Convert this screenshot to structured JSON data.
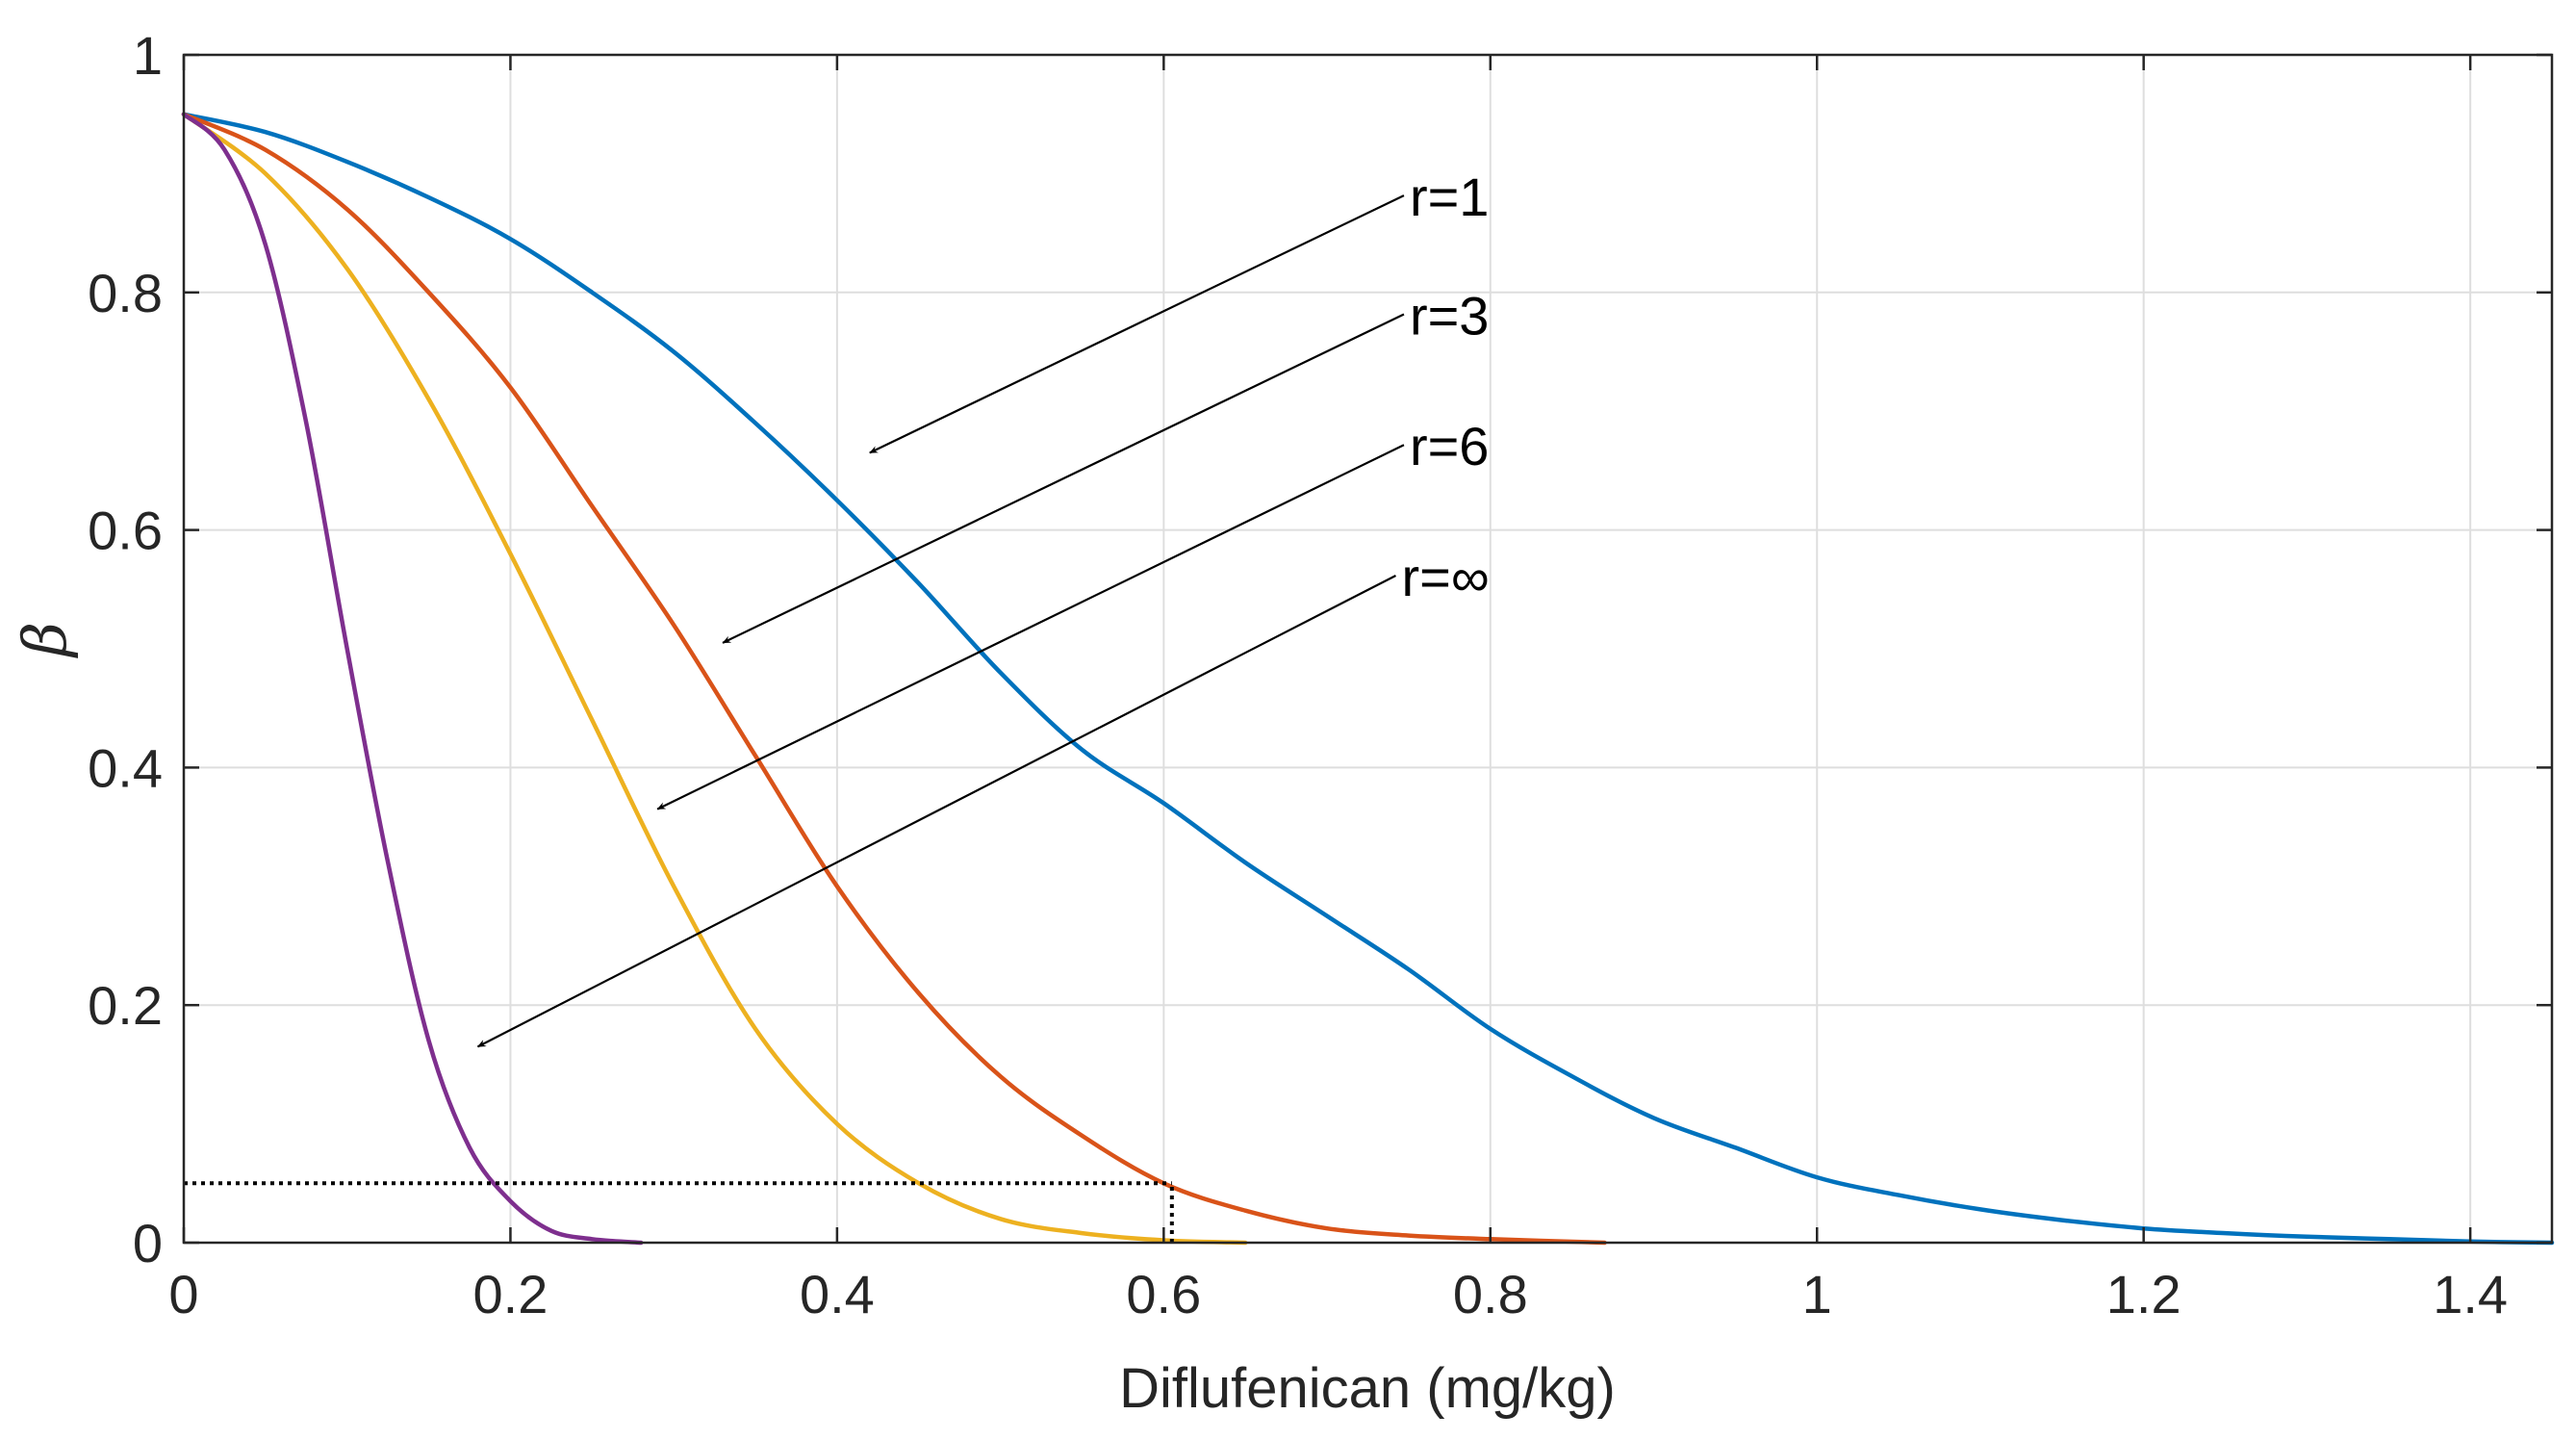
{
  "chart_data": {
    "type": "line",
    "title": "",
    "xlabel": "Diflufenican (mg/kg)",
    "ylabel": "β",
    "xlim": [
      0,
      1.45
    ],
    "ylim": [
      0,
      1
    ],
    "xticks": [
      0,
      0.2,
      0.4,
      0.6,
      0.8,
      1,
      1.2,
      1.4
    ],
    "xtick_labels": [
      "0",
      "0.2",
      "0.4",
      "0.6",
      "0.8",
      "1",
      "1.2",
      "1.4"
    ],
    "yticks": [
      0,
      0.2,
      0.4,
      0.6,
      0.8,
      1
    ],
    "ytick_labels": [
      "0",
      "0.2",
      "0.4",
      "0.6",
      "0.8",
      "1"
    ],
    "grid": true,
    "series": [
      {
        "name": "r=1",
        "color": "#0072BD",
        "x": [
          0,
          0.05,
          0.1,
          0.15,
          0.2,
          0.25,
          0.3,
          0.35,
          0.4,
          0.45,
          0.5,
          0.55,
          0.6,
          0.65,
          0.7,
          0.75,
          0.8,
          0.85,
          0.9,
          0.95,
          1.0,
          1.05,
          1.1,
          1.15,
          1.2,
          1.25,
          1.3,
          1.35,
          1.4,
          1.45
        ],
        "values": [
          0.95,
          0.935,
          0.91,
          0.88,
          0.845,
          0.8,
          0.75,
          0.69,
          0.625,
          0.555,
          0.48,
          0.415,
          0.37,
          0.32,
          0.275,
          0.23,
          0.18,
          0.14,
          0.105,
          0.08,
          0.055,
          0.04,
          0.028,
          0.019,
          0.012,
          0.008,
          0.005,
          0.003,
          0.001,
          0.0
        ]
      },
      {
        "name": "r=3",
        "color": "#D95319",
        "x": [
          0,
          0.05,
          0.1,
          0.15,
          0.2,
          0.25,
          0.3,
          0.35,
          0.4,
          0.45,
          0.5,
          0.55,
          0.6,
          0.65,
          0.7,
          0.75,
          0.8,
          0.87
        ],
        "values": [
          0.95,
          0.92,
          0.87,
          0.8,
          0.72,
          0.62,
          0.52,
          0.41,
          0.3,
          0.21,
          0.14,
          0.09,
          0.05,
          0.027,
          0.012,
          0.006,
          0.003,
          0.0
        ]
      },
      {
        "name": "r=6",
        "color": "#EDB120",
        "x": [
          0,
          0.05,
          0.1,
          0.15,
          0.2,
          0.25,
          0.3,
          0.35,
          0.4,
          0.45,
          0.5,
          0.55,
          0.6,
          0.65
        ],
        "values": [
          0.95,
          0.9,
          0.82,
          0.71,
          0.58,
          0.44,
          0.3,
          0.18,
          0.1,
          0.05,
          0.02,
          0.008,
          0.002,
          0.0
        ]
      },
      {
        "name": "r=∞",
        "color": "#7E2F8E",
        "x": [
          0,
          0.025,
          0.05,
          0.075,
          0.1,
          0.125,
          0.15,
          0.175,
          0.2,
          0.225,
          0.25,
          0.28
        ],
        "values": [
          0.95,
          0.92,
          0.84,
          0.69,
          0.5,
          0.32,
          0.17,
          0.08,
          0.035,
          0.01,
          0.003,
          0.0
        ]
      }
    ],
    "reference_lines": [
      {
        "type": "horizontal",
        "y": 0.05,
        "x_from": 0,
        "x_to": 0.605,
        "style": "dotted"
      },
      {
        "type": "vertical",
        "x": 0.605,
        "y_from": 0,
        "y_to": 0.05,
        "style": "dotted"
      }
    ],
    "annotations": [
      {
        "text": "r=1",
        "series": "r=1",
        "text_at": [
          0.74,
          0.88
        ],
        "arrow_to": [
          0.42,
          0.665
        ]
      },
      {
        "text": "r=3",
        "series": "r=3",
        "text_at": [
          0.74,
          0.78
        ],
        "arrow_to": [
          0.33,
          0.505
        ]
      },
      {
        "text": "r=6",
        "series": "r=6",
        "text_at": [
          0.74,
          0.67
        ],
        "arrow_to": [
          0.29,
          0.365
        ]
      },
      {
        "text": "r=∞",
        "series": "r=∞",
        "text_at": [
          0.735,
          0.56
        ],
        "arrow_to": [
          0.18,
          0.165
        ]
      }
    ]
  }
}
